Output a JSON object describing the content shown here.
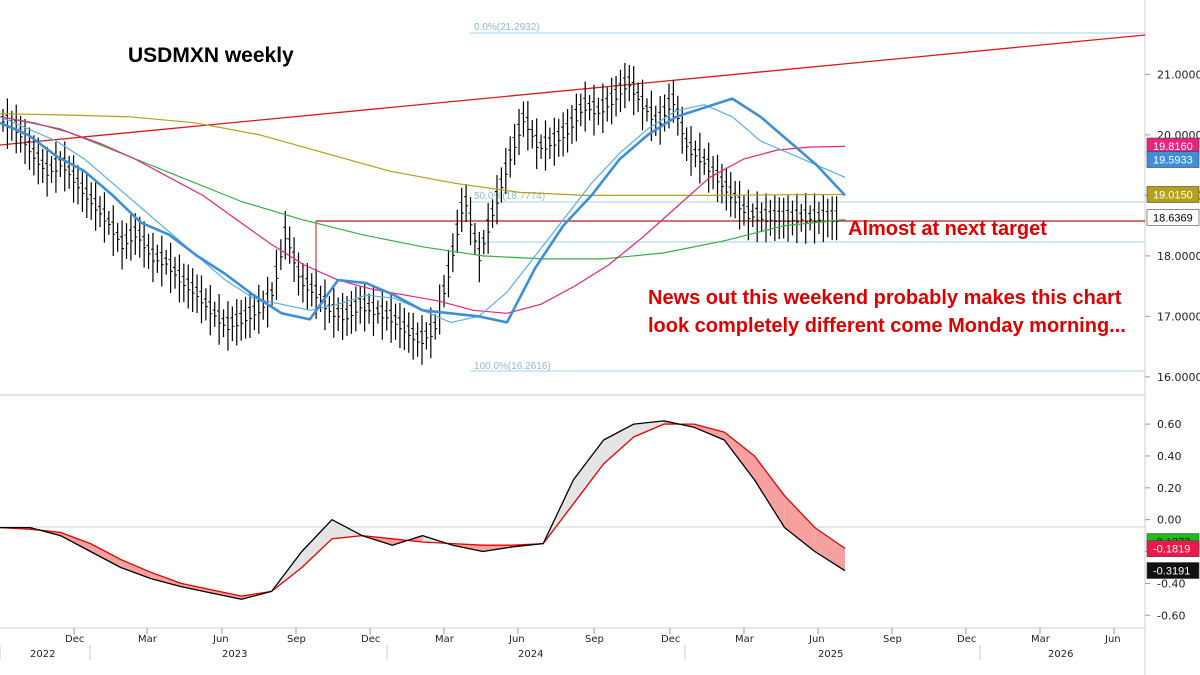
{
  "chart_data": [
    {
      "type": "line",
      "title": "USDMXN weekly",
      "annotations": [
        "Almost at next target",
        "News out this weekend probably makes this chart look completely different come Monday morning..."
      ],
      "y_ticks": [
        "16.0000",
        "17.0000",
        "18.0000",
        "19.0000",
        "20.0000",
        "21.0000"
      ],
      "ylim": [
        15.7,
        21.9
      ],
      "fib_labels": [
        "0.0%(21.2932)",
        "50.0%(18.7774)",
        "100.0%(16.2616)"
      ],
      "fib_levels": [
        21.2932,
        18.7774,
        16.2616
      ],
      "last_values": [
        {
          "label": "19.8160",
          "color": "#e8247c"
        },
        {
          "label": "19.5933",
          "color": "#3d8fdc"
        },
        {
          "label": "19.0150",
          "color": "#b5a019"
        },
        {
          "label": "18.6369",
          "color": "#ffffff"
        }
      ],
      "horizontal_level": 18.53,
      "series": [
        {
          "name": "price",
          "color": "#000000",
          "x": [
            0,
            2,
            4,
            6,
            8,
            10,
            12,
            14,
            16,
            18,
            20,
            22,
            24,
            26,
            28,
            30,
            32,
            34,
            36,
            38,
            40,
            42,
            44,
            46,
            48,
            50,
            52,
            54,
            56,
            58,
            60,
            62,
            64,
            66,
            68,
            70,
            72,
            74,
            76,
            78,
            80,
            82,
            84,
            86,
            88,
            90,
            92,
            94,
            96,
            98,
            100,
            102,
            104,
            106,
            108,
            110,
            112,
            114,
            116,
            118,
            120,
            122,
            124,
            126,
            128,
            130,
            132,
            134,
            136,
            138,
            140,
            142,
            144
          ],
          "y": [
            20.25,
            20.1,
            19.7,
            19.4,
            19.55,
            19.2,
            18.9,
            18.6,
            18.2,
            18.4,
            18.0,
            17.9,
            17.6,
            17.4,
            17.1,
            16.85,
            16.95,
            17.1,
            17.3,
            18.4,
            17.6,
            17.4,
            17.1,
            17.0,
            17.2,
            17.1,
            17.0,
            16.8,
            16.6,
            16.8,
            17.8,
            19.0,
            18.0,
            18.8,
            19.6,
            20.3,
            19.8,
            19.9,
            20.1,
            20.5,
            20.4,
            20.6,
            20.9,
            20.5,
            20.2,
            20.6,
            19.8,
            19.6,
            19.3,
            19.0,
            18.7,
            18.65,
            18.64,
            18.64,
            18.64,
            18.64,
            18.64,
            18.64,
            18.64,
            18.64,
            18.64,
            18.64,
            18.64,
            18.64,
            18.64,
            18.64,
            18.64,
            18.64,
            18.64,
            18.64,
            18.64,
            18.64,
            18.64
          ]
        },
        {
          "name": "fast",
          "color": "#3d8fdc",
          "y": [
            20.2,
            20.0,
            19.65,
            19.4,
            19.0,
            18.55,
            18.35,
            18.0,
            17.7,
            17.35,
            17.05,
            16.95,
            17.6,
            17.55,
            17.35,
            17.1,
            17.05,
            17.0,
            16.9,
            17.8,
            18.5,
            19.0,
            19.6,
            20.0,
            20.3,
            20.45,
            20.6,
            20.3,
            19.9,
            19.5,
            19.0
          ]
        },
        {
          "name": "slow",
          "color": "#5aaee8",
          "y": [
            20.3,
            20.1,
            19.9,
            19.6,
            19.2,
            18.8,
            18.4,
            18.0,
            17.6,
            17.3,
            17.2,
            17.1,
            17.2,
            17.35,
            17.3,
            17.1,
            16.9,
            17.0,
            17.4,
            18.0,
            18.6,
            19.2,
            19.7,
            20.1,
            20.4,
            20.5,
            20.3,
            19.9,
            19.7,
            19.5,
            19.3
          ]
        },
        {
          "name": "ma-pink",
          "color": "#e8247c",
          "y": [
            20.3,
            20.2,
            20.05,
            19.85,
            19.6,
            19.3,
            19.0,
            18.6,
            18.2,
            17.85,
            17.6,
            17.45,
            17.35,
            17.25,
            17.1,
            17.05,
            17.2,
            17.5,
            17.85,
            18.3,
            18.8,
            19.3,
            19.6,
            19.75,
            19.8,
            19.81
          ]
        },
        {
          "name": "ma-olive",
          "color": "#b5a019",
          "y": [
            20.35,
            20.33,
            20.3,
            20.2,
            20.0,
            19.7,
            19.4,
            19.2,
            19.05,
            19.0,
            19.0,
            19.0,
            19.01,
            19.015
          ]
        },
        {
          "name": "ma-green",
          "color": "#34b04a",
          "y": [
            20.3,
            20.1,
            19.7,
            19.3,
            18.9,
            18.6,
            18.35,
            18.15,
            18.0,
            17.95,
            17.95,
            18.05,
            18.25,
            18.5,
            18.6
          ]
        }
      ]
    },
    {
      "type": "area",
      "y_ticks": [
        "0.60",
        "0.40",
        "0.20",
        "0.00",
        "-0.20",
        "-0.40",
        "-0.60"
      ],
      "ylim": [
        -0.68,
        0.72
      ],
      "last_values": [
        {
          "label": "-0.1373",
          "color": "#18c018"
        },
        {
          "label": "-0.1819",
          "color": "#f01848"
        },
        {
          "label": "-0.3191",
          "color": "#111111"
        }
      ],
      "series": [
        {
          "name": "macd",
          "color": "#000000",
          "y": [
            -0.05,
            -0.05,
            -0.1,
            -0.2,
            -0.3,
            -0.37,
            -0.42,
            -0.46,
            -0.5,
            -0.45,
            -0.2,
            0.0,
            -0.1,
            -0.16,
            -0.1,
            -0.16,
            -0.2,
            -0.17,
            -0.15,
            0.25,
            0.5,
            0.6,
            0.62,
            0.58,
            0.5,
            0.25,
            -0.05,
            -0.2,
            -0.32
          ]
        },
        {
          "name": "signal",
          "color": "#e80000",
          "y": [
            -0.05,
            -0.06,
            -0.08,
            -0.15,
            -0.25,
            -0.33,
            -0.4,
            -0.44,
            -0.48,
            -0.45,
            -0.3,
            -0.12,
            -0.1,
            -0.12,
            -0.14,
            -0.15,
            -0.16,
            -0.16,
            -0.15,
            0.1,
            0.35,
            0.52,
            0.6,
            0.6,
            0.55,
            0.4,
            0.15,
            -0.05,
            -0.18
          ]
        }
      ]
    }
  ],
  "x_axis": {
    "months": [
      "Dec",
      "Mar",
      "Jun",
      "Sep",
      "Dec",
      "Mar",
      "Jun",
      "Sep",
      "Dec",
      "Mar",
      "Jun",
      "Sep",
      "Dec",
      "Mar",
      "Jun"
    ],
    "years": [
      "2022",
      "2023",
      "2024",
      "2025",
      "2026"
    ]
  }
}
